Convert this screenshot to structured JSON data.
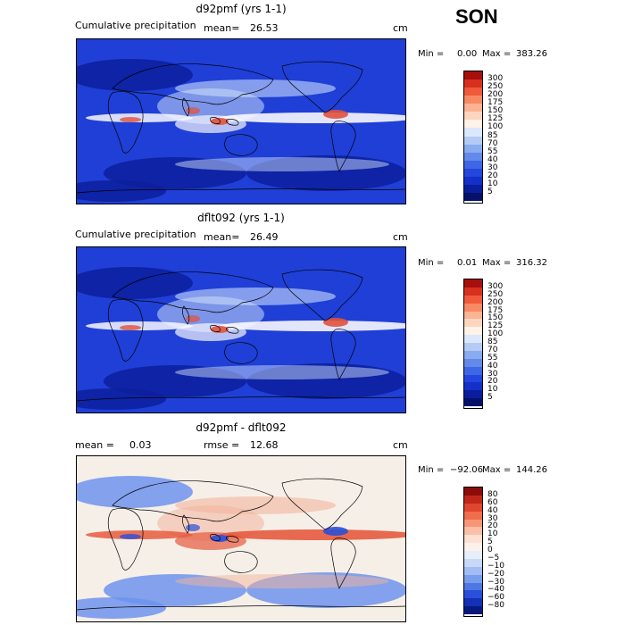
{
  "season": "SON",
  "panels": [
    {
      "title": "d92pmf (yrs 1-1)",
      "left_label": "Cumulative precipitation",
      "stat1_label": "mean=",
      "stat1_value": "26.53",
      "stat2_label": "",
      "stat2_value": "",
      "units": "cm",
      "min_label": "Min =",
      "min_value": "0.00",
      "max_label": "Max =",
      "max_value": "383.26",
      "legend_levels": [
        "300",
        "250",
        "200",
        "175",
        "150",
        "125",
        "100",
        "85",
        "70",
        "55",
        "40",
        "30",
        "20",
        "10",
        "5"
      ],
      "legend_colors": [
        "#a50f0d",
        "#d7301f",
        "#ef5a3a",
        "#f78a63",
        "#fbb393",
        "#fdd5bf",
        "#fff2e6",
        "#dbe8fb",
        "#b4cbf5",
        "#8aabef",
        "#6389ea",
        "#3e67e6",
        "#2446de",
        "#1430c8",
        "#0a1e9c",
        "#04106a"
      ],
      "map_colors": {
        "ocean": "#1f3fd6",
        "dry": "#0c1e9c",
        "wet": "#c9dcfa",
        "itcz": "#f8f8ff",
        "hot": "#e0523c"
      }
    },
    {
      "title": "dflt092 (yrs 1-1)",
      "left_label": "Cumulative precipitation",
      "stat1_label": "mean=",
      "stat1_value": "26.49",
      "stat2_label": "",
      "stat2_value": "",
      "units": "cm",
      "min_label": "Min =",
      "min_value": "0.01",
      "max_label": "Max =",
      "max_value": "316.32",
      "legend_levels": [
        "300",
        "250",
        "200",
        "175",
        "150",
        "125",
        "100",
        "85",
        "70",
        "55",
        "40",
        "30",
        "20",
        "10",
        "5"
      ],
      "legend_colors": [
        "#a50f0d",
        "#d7301f",
        "#ef5a3a",
        "#f78a63",
        "#fbb393",
        "#fdd5bf",
        "#fff2e6",
        "#dbe8fb",
        "#b4cbf5",
        "#8aabef",
        "#6389ea",
        "#3e67e6",
        "#2446de",
        "#1430c8",
        "#0a1e9c",
        "#04106a"
      ],
      "map_colors": {
        "ocean": "#1f3fd6",
        "dry": "#0c1e9c",
        "wet": "#c9dcfa",
        "itcz": "#f8f8ff",
        "hot": "#e0523c"
      }
    },
    {
      "title": "d92pmf - dflt092",
      "left_label": "",
      "stat1_label": "mean =",
      "stat1_value": "0.03",
      "stat2_label": "rmse =",
      "stat2_value": "12.68",
      "units": "cm",
      "min_label": "Min =",
      "min_value": "−92.06",
      "max_label": "Max =",
      "max_value": "144.26",
      "legend_levels": [
        "80",
        "60",
        "40",
        "30",
        "20",
        "10",
        "5",
        "0",
        "−5",
        "−10",
        "−20",
        "−30",
        "−40",
        "−60",
        "−80"
      ],
      "legend_colors": [
        "#8b0d0b",
        "#c0271a",
        "#e0452f",
        "#f06e4d",
        "#f79676",
        "#fbbea6",
        "#fde0d2",
        "#fdf2ea",
        "#e6eefc",
        "#c8d8f8",
        "#a2bdf3",
        "#7a9ced",
        "#4e77e6",
        "#2a4fd8",
        "#1430b4",
        "#08197e"
      ],
      "map_colors": {
        "ocean": "#f6efe8",
        "dry": "#6f93ec",
        "wet": "#f3b49c",
        "itcz": "#e65a3e",
        "hot": "#2a4fd8"
      }
    }
  ]
}
